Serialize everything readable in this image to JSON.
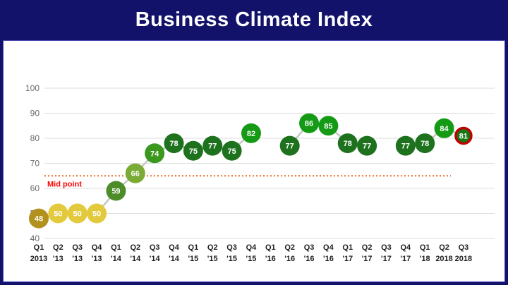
{
  "header": {
    "title": "Business Climate Index"
  },
  "colors": {
    "header_bg": "#12126B",
    "panel_border": "#4A4AB4",
    "grid": "#DDDDDD",
    "axis_label": "#6A6A6A",
    "x_label": "#1F1F1F",
    "connector": "#C6C6C6",
    "midline": "#ED6A1E",
    "midline_label": "#FF0000",
    "value_label": "#FFFFFF",
    "last_ring": "#C00000"
  },
  "chart_data": {
    "type": "line",
    "title": "Business Climate Index",
    "xlabel": "",
    "ylabel": "",
    "ylim": [
      40,
      100
    ],
    "yticks": [
      40,
      50,
      60,
      70,
      80,
      90,
      100
    ],
    "grid": true,
    "legend": false,
    "x_labels": [
      {
        "q": "Q1",
        "yr": "2013"
      },
      {
        "q": "Q2",
        "yr": "'13"
      },
      {
        "q": "Q3",
        "yr": "'13"
      },
      {
        "q": "Q4",
        "yr": "'13"
      },
      {
        "q": "Q1",
        "yr": "'14"
      },
      {
        "q": "Q2",
        "yr": "'14"
      },
      {
        "q": "Q3",
        "yr": "'14"
      },
      {
        "q": "Q4",
        "yr": "'14"
      },
      {
        "q": "Q1",
        "yr": "'15"
      },
      {
        "q": "Q2",
        "yr": "'15"
      },
      {
        "q": "Q3",
        "yr": "'15"
      },
      {
        "q": "Q4",
        "yr": "'15"
      },
      {
        "q": "Q1",
        "yr": "'16"
      },
      {
        "q": "Q2",
        "yr": "'16"
      },
      {
        "q": "Q3",
        "yr": "'16"
      },
      {
        "q": "Q4",
        "yr": "'16"
      },
      {
        "q": "Q1",
        "yr": "'17"
      },
      {
        "q": "Q2",
        "yr": "'17"
      },
      {
        "q": "Q3",
        "yr": "'17"
      },
      {
        "q": "Q4",
        "yr": "'17"
      },
      {
        "q": "Q1",
        "yr": "'18"
      },
      {
        "q": "Q2",
        "yr": "2018"
      },
      {
        "q": "Q3",
        "yr": "2018"
      }
    ],
    "values": [
      48,
      50,
      50,
      50,
      59,
      66,
      74,
      78,
      75,
      77,
      75,
      82,
      null,
      77,
      86,
      85,
      78,
      77,
      null,
      77,
      78,
      84,
      81
    ],
    "point_colors": [
      "#B3911E",
      "#E3C93C",
      "#E3C93C",
      "#E3C93C",
      "#4E8C2A",
      "#7AAB35",
      "#3B981F",
      "#1E721E",
      "#1E721E",
      "#1E721E",
      "#1E721E",
      "#149A14",
      null,
      "#1E721E",
      "#149A14",
      "#149A14",
      "#1E721E",
      "#1E721E",
      null,
      "#1E721E",
      "#1E721E",
      "#149A14",
      "#157815"
    ],
    "midline": {
      "value": 65,
      "label": "Mid point"
    },
    "highlight_last": true
  }
}
